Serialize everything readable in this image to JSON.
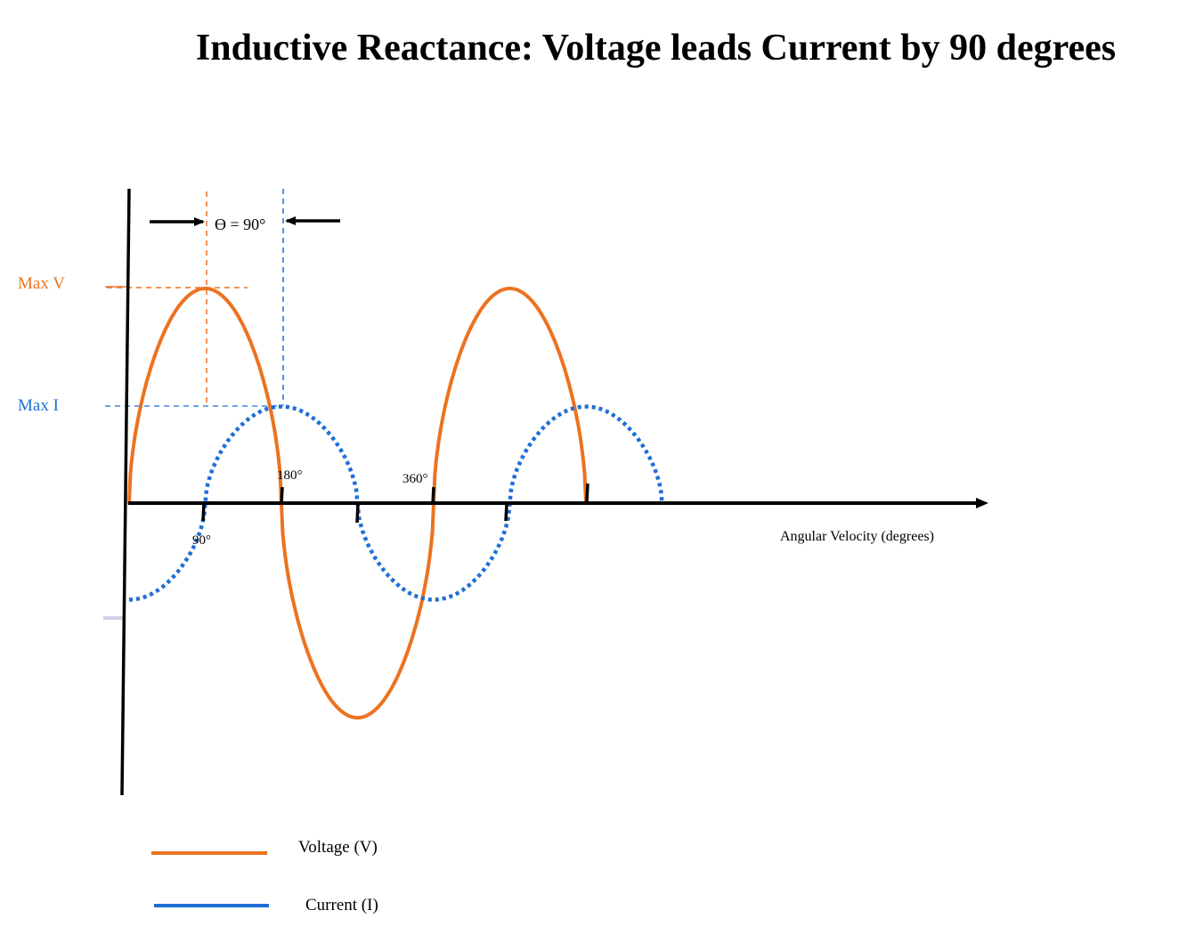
{
  "title": "Inductive Reactance: Voltage leads Current by 90 degrees",
  "y_labels": {
    "max_v": "Max V",
    "max_i": "Max I"
  },
  "phase_label": "Ө = 90°",
  "tick_labels": {
    "deg90": "90°",
    "deg180": "180°",
    "deg360": "360°"
  },
  "x_axis_label": "Angular Velocity (degrees)",
  "legend": {
    "voltage": "Voltage (V)",
    "current": "Current (I)"
  },
  "colors": {
    "voltage": "#ED7220",
    "current": "#1E6FD6",
    "axis": "#000000",
    "stray_mark": "#D6D0EA"
  },
  "waves": {
    "voltage_phase_deg": 0,
    "current_phase_deg": -90,
    "voltage_peak_relative": 1.0,
    "current_peak_relative": 0.45
  }
}
